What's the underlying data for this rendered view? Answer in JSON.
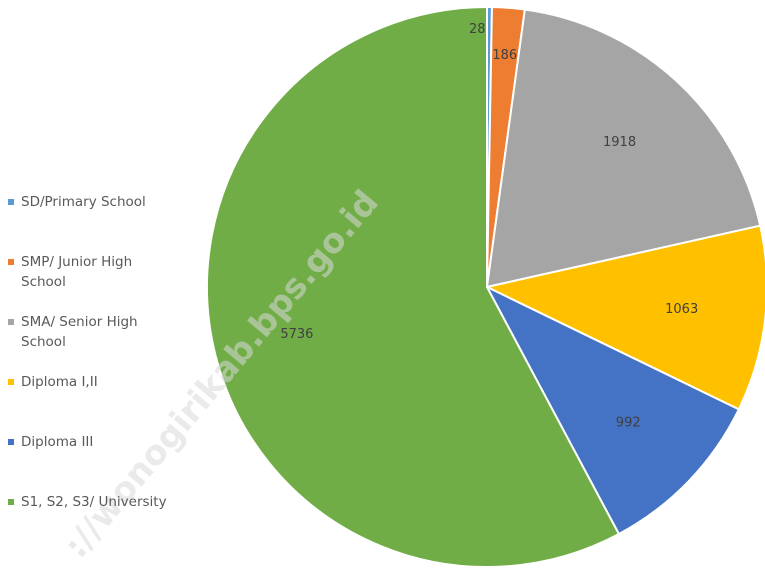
{
  "chart_data": {
    "type": "pie",
    "categories": [
      "SD/Primary School",
      "SMP/ Junior High School",
      "SMA/ Senior High School",
      "Diploma I,II",
      "Diploma III",
      "S1, S2, S3/ University"
    ],
    "values": [
      28,
      186,
      1918,
      1063,
      992,
      5736
    ],
    "colors": [
      "#5b9bd5",
      "#ed7d31",
      "#a5a5a5",
      "#ffc000",
      "#4472c4",
      "#70ad47"
    ],
    "legend": "left",
    "watermark": "://wonogirikab.bps.go.id"
  }
}
